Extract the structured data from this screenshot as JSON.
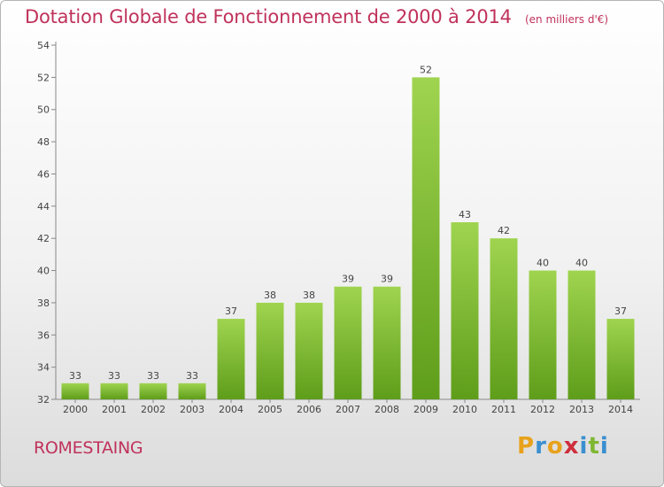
{
  "chart_data": {
    "type": "bar",
    "title": "Dotation Globale de Fonctionnement de 2000 à 2014",
    "subtitle": "(en milliers d'€)",
    "categories": [
      "2000",
      "2001",
      "2002",
      "2003",
      "2004",
      "2005",
      "2006",
      "2007",
      "2008",
      "2009",
      "2010",
      "2011",
      "2012",
      "2013",
      "2014"
    ],
    "values": [
      33,
      33,
      33,
      33,
      37,
      38,
      38,
      39,
      39,
      52,
      43,
      42,
      40,
      40,
      37
    ],
    "ylim": [
      32,
      54
    ],
    "yticks": [
      32,
      34,
      36,
      38,
      40,
      42,
      44,
      46,
      48,
      50,
      52,
      54
    ],
    "grid": false,
    "legend": "none",
    "colors": {
      "bar_top": "#9fd44f",
      "bar_bottom": "#5e9d1a",
      "title": "#c0325b",
      "axis": "#888888"
    }
  },
  "commune": "ROMESTAING",
  "brand": {
    "letters": [
      "P",
      "r",
      "o",
      "x",
      "i",
      "t",
      "i"
    ],
    "colors": [
      "#e8a21c",
      "#3a8fd0",
      "#e8a21c",
      "#cf2e3c",
      "#3a8fd0",
      "#7fb733",
      "#3a8fd0"
    ]
  }
}
